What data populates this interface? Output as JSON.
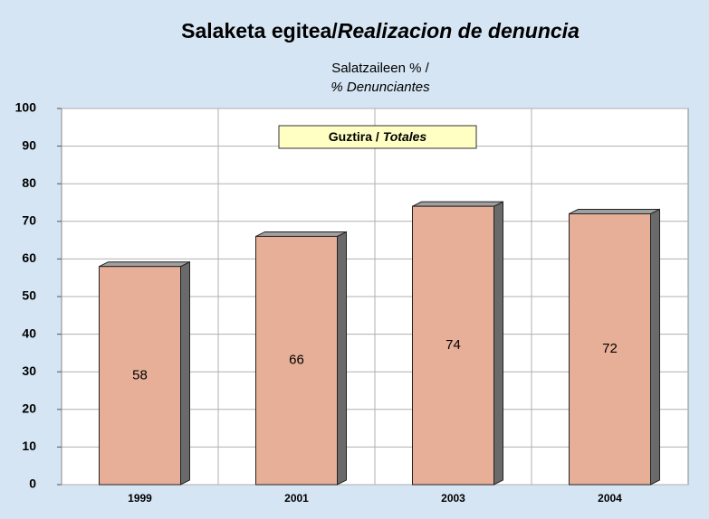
{
  "chart_data": {
    "type": "bar",
    "title": [
      "Salaketa egitea/",
      "Realizacion de denuncia"
    ],
    "subtitle": [
      "Salatzaileen % /",
      "% Denunciantes"
    ],
    "annotation": [
      "Guztira / ",
      "Totales"
    ],
    "categories": [
      "1999",
      "2001",
      "2003",
      "2004"
    ],
    "values": [
      58,
      66,
      74,
      72
    ],
    "color": "#e8af98",
    "ylim": [
      0,
      100
    ],
    "yticks": [
      0,
      10,
      20,
      30,
      40,
      50,
      60,
      70,
      80,
      90,
      100
    ],
    "grid": true
  }
}
